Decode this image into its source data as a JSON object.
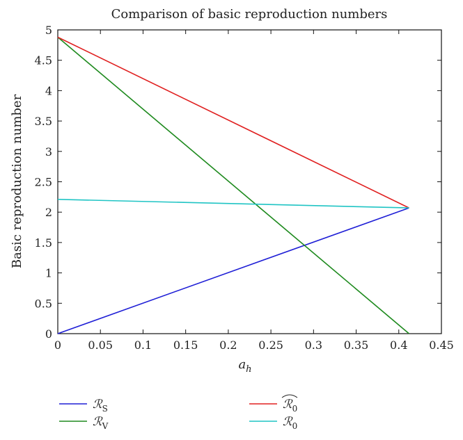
{
  "chart_data": {
    "type": "line",
    "title": "Comparison of basic reproduction numbers",
    "xlabel": "a",
    "xlabel_sub": "h",
    "ylabel": "Basic reproduction number",
    "xlim": [
      0,
      0.45
    ],
    "ylim": [
      0,
      5
    ],
    "xticks": [
      "0",
      "0.05",
      "0.1",
      "0.15",
      "0.2",
      "0.25",
      "0.3",
      "0.35",
      "0.4",
      "0.45"
    ],
    "yticks": [
      "0",
      "0.5",
      "1",
      "1.5",
      "2",
      "2.5",
      "3",
      "3.5",
      "4",
      "4.5",
      "5"
    ],
    "grid": false,
    "legend_position": "bottom",
    "series": [
      {
        "name": "ℛ",
        "sub": "S",
        "hat": false,
        "color": "#1f1fd6",
        "x": [
          0,
          0.412
        ],
        "y": [
          0,
          2.07
        ]
      },
      {
        "name": "ℛ",
        "sub": "V",
        "hat": false,
        "color": "#1e8a1e",
        "x": [
          0,
          0.412
        ],
        "y": [
          4.88,
          0
        ]
      },
      {
        "name": "ℛ",
        "sub": "0",
        "hat": true,
        "color": "#e02020",
        "x": [
          0,
          0.412
        ],
        "y": [
          4.88,
          2.07
        ]
      },
      {
        "name": "ℛ",
        "sub": "0",
        "hat": false,
        "color": "#1fc4c4",
        "x": [
          0,
          0.412
        ],
        "y": [
          2.21,
          2.07
        ]
      }
    ]
  }
}
